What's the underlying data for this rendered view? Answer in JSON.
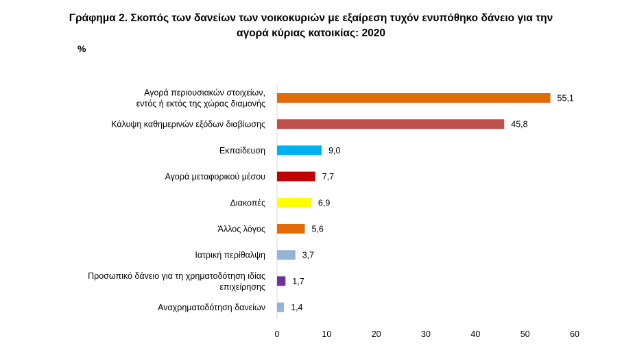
{
  "title_line1": "Γράφημα 2. Σκοπός των δανείων των νοικοκυριών με εξαίρεση τυχόν ενυπόθηκο δάνειο για την",
  "title_line2": "αγορά κύριας κατοικίας: 2020",
  "unit_label": "%",
  "chart_data": {
    "type": "bar",
    "orientation": "horizontal",
    "categories": [
      [
        "Αγορά περιουσιακών στοιχείων,",
        "εντός ή εκτός της χώρας διαμονής"
      ],
      [
        "Κάλυψη καθημερινών εξόδων διαβίωσης"
      ],
      [
        "Εκπαίδευση"
      ],
      [
        "Αγορά μεταφορικού μέσου"
      ],
      [
        "Διακοπές"
      ],
      [
        "Άλλος λόγος"
      ],
      [
        "Ιατρική περίθαλψη"
      ],
      [
        "Προσωπικό δάνειο για τη χρηματοδότηση ιδίας",
        "επιχείρησης"
      ],
      [
        "Αναχρηματοδότηση δανείων"
      ]
    ],
    "values": [
      55.1,
      45.8,
      9.0,
      7.7,
      6.9,
      5.6,
      3.7,
      1.7,
      1.4
    ],
    "value_labels": [
      "55,1",
      "45,8",
      "9,0",
      "7,7",
      "6,9",
      "5,6",
      "3,7",
      "1,7",
      "1,4"
    ],
    "colors": [
      "#E36C09",
      "#C0504D",
      "#00B0F0",
      "#C00000",
      "#FFFF00",
      "#E36C09",
      "#95B3D7",
      "#7030A0",
      "#95B3D7"
    ],
    "xlim": [
      0,
      60
    ],
    "xticks": [
      0,
      10,
      20,
      30,
      40,
      50,
      60
    ],
    "grid": false
  }
}
